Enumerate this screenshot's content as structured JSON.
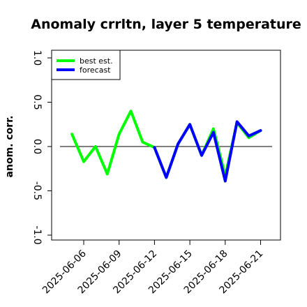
{
  "chart_data": {
    "type": "line",
    "title": "Anomaly crrltn, layer 5 temperature",
    "xlabel": "",
    "ylabel": "anom. corr.",
    "ylim": [
      -1.0,
      1.0
    ],
    "yticks": [
      "-1.0",
      "-0.5",
      "0.0",
      "0.5",
      "1.0"
    ],
    "xtick_labels": [
      "2025-06-06",
      "2025-06-09",
      "2025-06-12",
      "2025-06-15",
      "2025-06-18",
      "2025-06-21"
    ],
    "highlight_tick": "2025-06-12",
    "highlight_color": "#228b22",
    "reference_line": 0.0,
    "legend": {
      "placement": "top-left"
    },
    "series": [
      {
        "name": "best est.",
        "color": "#00ff00",
        "points": [
          [
            "2025-06-05",
            0.14
          ],
          [
            "2025-06-06",
            -0.17
          ],
          [
            "2025-06-07",
            0.0
          ],
          [
            "2025-06-08",
            -0.31
          ],
          [
            "2025-06-09",
            0.14
          ],
          [
            "2025-06-10",
            0.4
          ],
          [
            "2025-06-11",
            0.05
          ],
          [
            "2025-06-12",
            -0.01
          ],
          [
            "2025-06-13",
            -0.35
          ],
          [
            "2025-06-14",
            0.03
          ],
          [
            "2025-06-15",
            0.25
          ],
          [
            "2025-06-16",
            -0.1
          ],
          [
            "2025-06-17",
            0.2
          ],
          [
            "2025-06-18",
            -0.33
          ],
          [
            "2025-06-19",
            0.27
          ],
          [
            "2025-06-20",
            0.1
          ],
          [
            "2025-06-21",
            0.18
          ]
        ]
      },
      {
        "name": "forecast",
        "color": "#0000ff",
        "points": [
          [
            "2025-06-12",
            -0.01
          ],
          [
            "2025-06-13",
            -0.35
          ],
          [
            "2025-06-14",
            0.03
          ],
          [
            "2025-06-15",
            0.25
          ],
          [
            "2025-06-16",
            -0.1
          ],
          [
            "2025-06-17",
            0.16
          ],
          [
            "2025-06-18",
            -0.39
          ],
          [
            "2025-06-19",
            0.28
          ],
          [
            "2025-06-20",
            0.12
          ],
          [
            "2025-06-21",
            0.18
          ]
        ]
      }
    ]
  }
}
